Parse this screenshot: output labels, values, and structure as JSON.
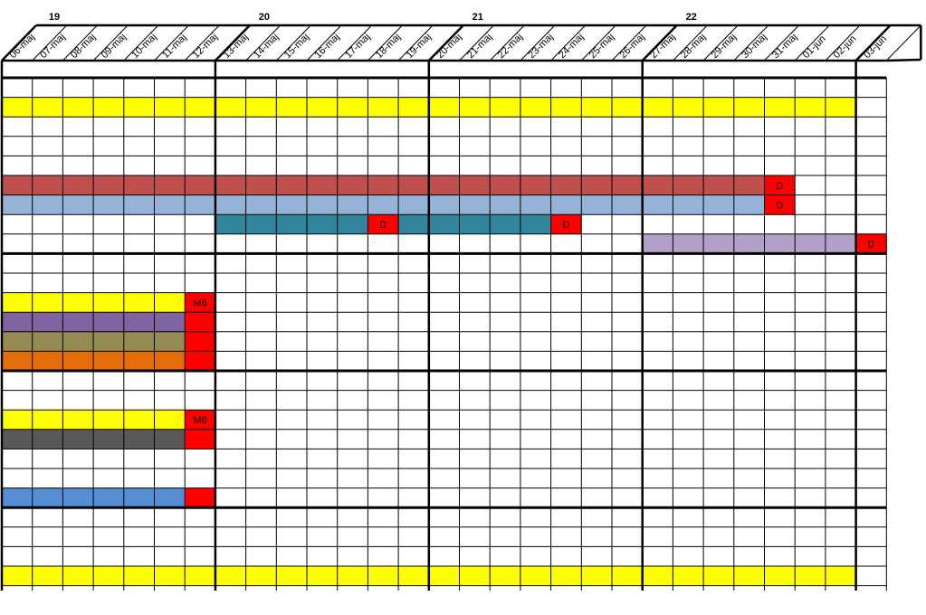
{
  "weeks": [
    "19",
    "20",
    "21",
    "22"
  ],
  "dates": [
    "06-maj",
    "07-maj",
    "08-maj",
    "09-maj",
    "10-maj",
    "11-maj",
    "12-maj",
    "13-maj",
    "14-maj",
    "15-maj",
    "16-maj",
    "17-maj",
    "18-maj",
    "19-maj",
    "20-maj",
    "21-maj",
    "22-maj",
    "23-maj",
    "24-maj",
    "25-maj",
    "26-maj",
    "27-maj",
    "28-maj",
    "29-maj",
    "30-maj",
    "31-maj",
    "01-jun",
    "02-jun",
    "03-jun"
  ],
  "colors": {
    "yellow": "#ffff00",
    "red": "#ff0000",
    "brick": "#c0504d",
    "light_blue": "#95b3d7",
    "teal": "#31859c",
    "lavender": "#b1a0c7",
    "purple": "#8064a2",
    "olive": "#948a54",
    "orange": "#e46c0a",
    "dark_gray": "#595959",
    "blue": "#558ed5",
    "grid": "#000000"
  },
  "bars": [
    {
      "row": 1,
      "from": 0,
      "to": 27,
      "color": "yellow"
    },
    {
      "row": 5,
      "from": 0,
      "to": 24,
      "color": "brick"
    },
    {
      "row": 5,
      "from": 25,
      "to": 25,
      "color": "red",
      "label": "D"
    },
    {
      "row": 6,
      "from": 0,
      "to": 24,
      "color": "light_blue"
    },
    {
      "row": 6,
      "from": 25,
      "to": 25,
      "color": "red",
      "label": "D"
    },
    {
      "row": 7,
      "from": 7,
      "to": 11,
      "color": "teal"
    },
    {
      "row": 7,
      "from": 12,
      "to": 12,
      "color": "red",
      "label": "D"
    },
    {
      "row": 7,
      "from": 13,
      "to": 17,
      "color": "teal"
    },
    {
      "row": 7,
      "from": 18,
      "to": 18,
      "color": "red",
      "label": "D"
    },
    {
      "row": 8,
      "from": 21,
      "to": 27,
      "color": "lavender"
    },
    {
      "row": 8,
      "from": 28,
      "to": 28,
      "color": "red",
      "label": "D"
    },
    {
      "row": 11,
      "from": 0,
      "to": 5,
      "color": "yellow"
    },
    {
      "row": 11,
      "from": 6,
      "to": 6,
      "color": "red",
      "label": "M6"
    },
    {
      "row": 12,
      "from": 0,
      "to": 5,
      "color": "purple"
    },
    {
      "row": 12,
      "from": 6,
      "to": 6,
      "color": "red"
    },
    {
      "row": 13,
      "from": 0,
      "to": 5,
      "color": "olive"
    },
    {
      "row": 13,
      "from": 6,
      "to": 6,
      "color": "red"
    },
    {
      "row": 14,
      "from": 0,
      "to": 5,
      "color": "orange"
    },
    {
      "row": 14,
      "from": 6,
      "to": 6,
      "color": "red"
    },
    {
      "row": 17,
      "from": 0,
      "to": 5,
      "color": "yellow"
    },
    {
      "row": 17,
      "from": 6,
      "to": 6,
      "color": "red",
      "label": "M6"
    },
    {
      "row": 18,
      "from": 0,
      "to": 5,
      "color": "dark_gray"
    },
    {
      "row": 18,
      "from": 6,
      "to": 6,
      "color": "red"
    },
    {
      "row": 21,
      "from": 0,
      "to": 5,
      "color": "blue"
    },
    {
      "row": 21,
      "from": 6,
      "to": 6,
      "color": "red"
    },
    {
      "row": 25,
      "from": 0,
      "to": 27,
      "color": "yellow"
    }
  ]
}
